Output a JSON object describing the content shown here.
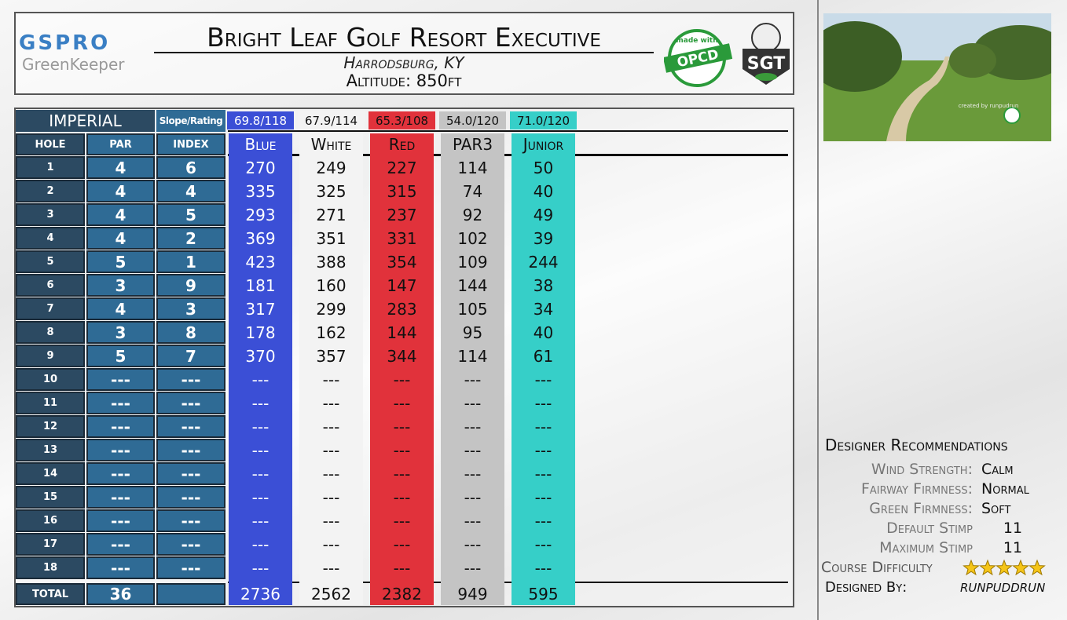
{
  "header": {
    "logo_top": "GSPRO",
    "logo_bottom": "GreenKeeper",
    "title": "Bright Leaf Golf Resort Executive",
    "location": "Harrodsburg, KY",
    "altitude": "Altitude: 850ft",
    "badge_opcd_top": "made with",
    "badge_opcd": "OPCD",
    "badge_sgt": "SGT"
  },
  "scorecard": {
    "unit": "IMPERIAL",
    "slope_label": "Slope/Rating",
    "column_headers": [
      "HOLE",
      "PAR",
      "INDEX"
    ],
    "total_label": "TOTAL",
    "par_total": 36,
    "holes": [
      {
        "hole": 1,
        "par": 4,
        "index": 6
      },
      {
        "hole": 2,
        "par": 4,
        "index": 4
      },
      {
        "hole": 3,
        "par": 4,
        "index": 5
      },
      {
        "hole": 4,
        "par": 4,
        "index": 2
      },
      {
        "hole": 5,
        "par": 5,
        "index": 1
      },
      {
        "hole": 6,
        "par": 3,
        "index": 9
      },
      {
        "hole": 7,
        "par": 4,
        "index": 3
      },
      {
        "hole": 8,
        "par": 3,
        "index": 8
      },
      {
        "hole": 9,
        "par": 5,
        "index": 7
      },
      {
        "hole": 10,
        "par": "---",
        "index": "---"
      },
      {
        "hole": 11,
        "par": "---",
        "index": "---"
      },
      {
        "hole": 12,
        "par": "---",
        "index": "---"
      },
      {
        "hole": 13,
        "par": "---",
        "index": "---"
      },
      {
        "hole": 14,
        "par": "---",
        "index": "---"
      },
      {
        "hole": 15,
        "par": "---",
        "index": "---"
      },
      {
        "hole": 16,
        "par": "---",
        "index": "---"
      },
      {
        "hole": 17,
        "par": "---",
        "index": "---"
      },
      {
        "hole": 18,
        "par": "---",
        "index": "---"
      }
    ],
    "tees": [
      {
        "name": "Blue",
        "rating": "69.8/118",
        "color": "#3b4fd6",
        "text_color": "#ffffff",
        "yardages": [
          270,
          335,
          293,
          369,
          423,
          181,
          317,
          178,
          370,
          "---",
          "---",
          "---",
          "---",
          "---",
          "---",
          "---",
          "---",
          "---"
        ],
        "total": 2736
      },
      {
        "name": "White",
        "rating": "67.9/114",
        "color": "#f3f3f3",
        "text_color": "#111111",
        "yardages": [
          249,
          325,
          271,
          351,
          388,
          160,
          299,
          162,
          357,
          "---",
          "---",
          "---",
          "---",
          "---",
          "---",
          "---",
          "---",
          "---"
        ],
        "total": 2562
      },
      {
        "name": "Red",
        "rating": "65.3/108",
        "color": "#e1323b",
        "text_color": "#111111",
        "yardages": [
          227,
          315,
          237,
          331,
          354,
          147,
          283,
          144,
          344,
          "---",
          "---",
          "---",
          "---",
          "---",
          "---",
          "---",
          "---",
          "---"
        ],
        "total": 2382
      },
      {
        "name": "PAR3",
        "rating": "54.0/120",
        "color": "#c4c4c4",
        "text_color": "#111111",
        "yardages": [
          114,
          74,
          92,
          102,
          109,
          144,
          105,
          95,
          114,
          "---",
          "---",
          "---",
          "---",
          "---",
          "---",
          "---",
          "---",
          "---"
        ],
        "total": 949
      },
      {
        "name": "Junior",
        "rating": "71.0/120",
        "color": "#36cfc8",
        "text_color": "#111111",
        "yardages": [
          50,
          40,
          49,
          39,
          244,
          38,
          34,
          40,
          61,
          "---",
          "---",
          "---",
          "---",
          "---",
          "---",
          "---",
          "---",
          "---"
        ],
        "total": 595
      }
    ]
  },
  "thumbnail": {
    "credit": "created by runpudrun"
  },
  "recommendations": {
    "title": "Designer Recommendations",
    "items": [
      {
        "label": "Wind Strength:",
        "value": "Calm"
      },
      {
        "label": "Fairway Firmness:",
        "value": "Normal"
      },
      {
        "label": "Green Firmness:",
        "value": "Soft"
      },
      {
        "label": "Default Stimp",
        "value": "11"
      },
      {
        "label": "Maximum Stimp",
        "value": "11"
      }
    ],
    "difficulty_label": "Course Difficulty",
    "difficulty_stars": 5,
    "designed_by_label": "Designed By:",
    "designer": "RUNPUDDRUN"
  }
}
